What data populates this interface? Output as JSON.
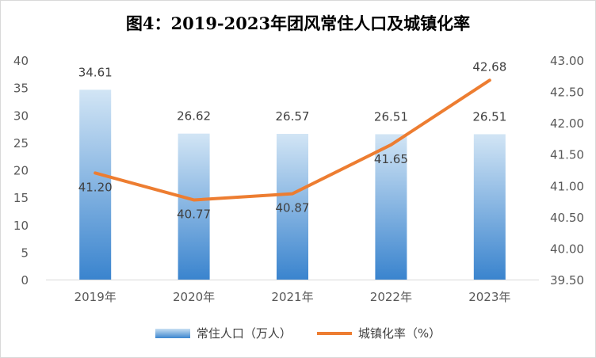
{
  "chart_data": {
    "type": "bar",
    "title": "图4：2019-2023年团风常住人口及城镇化率",
    "categories": [
      "2019年",
      "2020年",
      "2021年",
      "2022年",
      "2023年"
    ],
    "series": [
      {
        "name": "常住人口（万人）",
        "type": "bar",
        "axis": "left",
        "values": [
          34.61,
          26.62,
          26.57,
          26.51,
          26.51
        ],
        "labels": [
          "34.61",
          "26.62",
          "26.57",
          "26.51",
          "26.51"
        ],
        "color": "#3c86cf"
      },
      {
        "name": "城镇化率（%）",
        "type": "line",
        "axis": "right",
        "values": [
          41.2,
          40.77,
          40.87,
          41.65,
          42.68
        ],
        "labels": [
          "41.20",
          "40.77",
          "40.87",
          "41.65",
          "42.68"
        ],
        "color": "#ed7d31"
      }
    ],
    "y_left": {
      "min": 0,
      "max": 40,
      "ticks": [
        "0",
        "5",
        "10",
        "15",
        "20",
        "25",
        "30",
        "35",
        "40"
      ]
    },
    "y_right": {
      "min": 39.5,
      "max": 43.0,
      "ticks": [
        "39.50",
        "40.00",
        "40.50",
        "41.00",
        "41.50",
        "42.00",
        "42.50",
        "43.00"
      ]
    },
    "grid": false,
    "legend": "bottom"
  }
}
